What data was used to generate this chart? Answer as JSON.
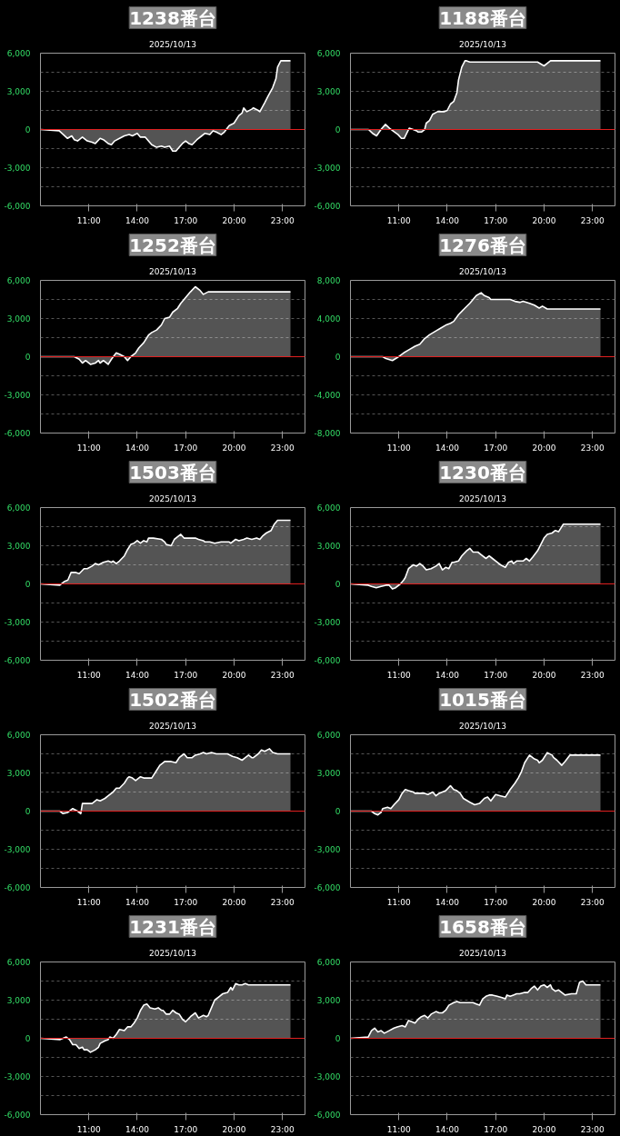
{
  "chart_data": [
    {
      "type": "area",
      "title": "1238番台",
      "subtitle": "2025/10/13",
      "xlim": [
        8,
        24.4
      ],
      "ylim": [
        -6000,
        6000
      ],
      "grid": "y",
      "xticks": [
        {
          "value": 11,
          "label": "11:00"
        },
        {
          "value": 14,
          "label": "14:00"
        },
        {
          "value": 17,
          "label": "17:00"
        },
        {
          "value": 20,
          "label": "20:00"
        },
        {
          "value": 23,
          "label": "23:00"
        }
      ],
      "yticks": [
        {
          "value": -6000,
          "label": "-6,000"
        },
        {
          "value": -4500,
          "label": null
        },
        {
          "value": -3000,
          "label": "-3,000"
        },
        {
          "value": -1500,
          "label": null
        },
        0,
        {
          "value": 1500,
          "label": null
        },
        {
          "value": 3000,
          "label": "3,000"
        },
        {
          "value": 4500,
          "label": null
        },
        {
          "value": 6000,
          "label": "6,000"
        }
      ],
      "ref_lines": [
        {
          "axis": "y",
          "value": 0,
          "color": "#e02020"
        }
      ],
      "x": [
        8.0,
        9.16,
        9.68,
        9.94,
        10.1,
        10.3,
        10.6,
        10.9,
        11.2,
        11.4,
        11.7,
        11.9,
        12.2,
        12.4,
        12.6,
        12.9,
        13.2,
        13.5,
        13.7,
        14.0,
        14.2,
        14.5,
        14.9,
        15.2,
        15.5,
        15.7,
        16.0,
        16.2,
        16.4,
        16.6,
        16.8,
        17.0,
        17.2,
        17.4,
        17.7,
        18.0,
        18.2,
        18.5,
        18.7,
        18.9,
        19.2,
        19.4,
        19.7,
        20.0,
        20.3,
        20.5,
        20.6,
        20.8,
        21.1,
        21.2,
        21.5,
        21.6,
        21.9,
        22.1,
        22.4,
        22.6,
        22.7,
        22.9,
        23.5
      ],
      "series": [
        {
          "color": "#ffffff",
          "values": [
            0,
            -100,
            -700,
            -500,
            -800,
            -900,
            -600,
            -900,
            -1000,
            -1100,
            -700,
            -800,
            -1100,
            -1200,
            -900,
            -700,
            -500,
            -400,
            -500,
            -300,
            -600,
            -600,
            -1200,
            -1400,
            -1300,
            -1400,
            -1300,
            -1700,
            -1700,
            -1400,
            -1100,
            -900,
            -1100,
            -1200,
            -800,
            -500,
            -300,
            -400,
            -100,
            -200,
            -400,
            -200,
            300,
            500,
            1100,
            1300,
            1700,
            1400,
            1600,
            1700,
            1500,
            1400,
            2100,
            2600,
            3300,
            4000,
            4900,
            5400,
            5400
          ]
        }
      ]
    },
    {
      "type": "area",
      "title": "1188番台",
      "subtitle": "2025/10/13",
      "xlim": [
        8,
        24.4
      ],
      "ylim": [
        -6000,
        6000
      ],
      "grid": "y",
      "xticks": [
        {
          "value": 11,
          "label": "11:00"
        },
        {
          "value": 14,
          "label": "14:00"
        },
        {
          "value": 17,
          "label": "17:00"
        },
        {
          "value": 20,
          "label": "20:00"
        },
        {
          "value": 23,
          "label": "23:00"
        }
      ],
      "yticks": [
        {
          "value": -6000,
          "label": "-6,000"
        },
        {
          "value": -4500,
          "label": null
        },
        {
          "value": -3000,
          "label": "-3,000"
        },
        {
          "value": -1500,
          "label": null
        },
        0,
        {
          "value": 1500,
          "label": null
        },
        {
          "value": 3000,
          "label": "3,000"
        },
        {
          "value": 4500,
          "label": null
        },
        {
          "value": 6000,
          "label": "6,000"
        }
      ],
      "ref_lines": [
        {
          "axis": "y",
          "value": 0,
          "color": "#e02020"
        }
      ],
      "x": [
        8.0,
        9.12,
        9.37,
        9.62,
        9.89,
        10.17,
        10.42,
        10.74,
        10.95,
        11.16,
        11.33,
        11.64,
        11.89,
        12.1,
        12.2,
        12.4,
        12.6,
        12.7,
        12.9,
        13.1,
        13.4,
        13.8,
        14.0,
        14.2,
        14.4,
        14.6,
        14.7,
        14.9,
        15.1,
        15.2,
        15.4,
        19.6,
        20.0,
        20.4,
        23.5
      ],
      "series": [
        {
          "color": "#ffffff",
          "values": [
            0,
            0,
            -300,
            -500,
            0,
            400,
            100,
            -200,
            -400,
            -700,
            -700,
            100,
            0,
            -100,
            -200,
            -200,
            0,
            500,
            700,
            1200,
            1400,
            1400,
            1500,
            2000,
            2200,
            2900,
            3900,
            4900,
            5400,
            5400,
            5300,
            5300,
            5000,
            5400,
            5400
          ]
        }
      ]
    },
    {
      "type": "area",
      "title": "1252番台",
      "subtitle": "2025/10/13",
      "xlim": [
        8,
        24.4
      ],
      "ylim": [
        -6000,
        6000
      ],
      "grid": "y",
      "xticks": [
        {
          "value": 11,
          "label": "11:00"
        },
        {
          "value": 14,
          "label": "14:00"
        },
        {
          "value": 17,
          "label": "17:00"
        },
        {
          "value": 20,
          "label": "20:00"
        },
        {
          "value": 23,
          "label": "23:00"
        }
      ],
      "yticks": [
        {
          "value": -6000,
          "label": "-6,000"
        },
        {
          "value": -4500,
          "label": null
        },
        {
          "value": -3000,
          "label": "-3,000"
        },
        {
          "value": -1500,
          "label": null
        },
        0,
        {
          "value": 1500,
          "label": null
        },
        {
          "value": 3000,
          "label": "3,000"
        },
        {
          "value": 4500,
          "label": null
        },
        {
          "value": 6000,
          "label": "6,000"
        }
      ],
      "ref_lines": [
        {
          "axis": "y",
          "value": 0,
          "color": "#e02020"
        }
      ],
      "x": [
        8.0,
        10.1,
        10.4,
        10.6,
        10.8,
        11.1,
        11.4,
        11.6,
        11.7,
        11.9,
        12.2,
        12.4,
        12.7,
        12.9,
        13.2,
        13.4,
        13.6,
        13.9,
        14.1,
        14.4,
        14.7,
        14.9,
        15.2,
        15.5,
        15.7,
        16.0,
        16.2,
        16.5,
        16.7,
        17.1,
        17.3,
        17.6,
        17.9,
        18.1,
        18.4,
        23.5
      ],
      "series": [
        {
          "color": "#ffffff",
          "values": [
            0,
            0,
            -200,
            -500,
            -300,
            -600,
            -500,
            -300,
            -500,
            -300,
            -600,
            -200,
            300,
            200,
            0,
            -300,
            0,
            300,
            700,
            1100,
            1700,
            1900,
            2100,
            2500,
            3000,
            3100,
            3500,
            3800,
            4200,
            4800,
            5100,
            5500,
            5200,
            4900,
            5100,
            5100
          ]
        }
      ]
    },
    {
      "type": "area",
      "title": "1276番台",
      "subtitle": "2025/10/13",
      "xlim": [
        8,
        24.4
      ],
      "ylim": [
        -8000,
        8000
      ],
      "grid": "y",
      "xticks": [
        {
          "value": 11,
          "label": "11:00"
        },
        {
          "value": 14,
          "label": "14:00"
        },
        {
          "value": 17,
          "label": "17:00"
        },
        {
          "value": 20,
          "label": "20:00"
        },
        {
          "value": 23,
          "label": "23:00"
        }
      ],
      "yticks": [
        {
          "value": -8000,
          "label": "-8,000"
        },
        {
          "value": -6000,
          "label": null
        },
        {
          "value": -4000,
          "label": "-4,000"
        },
        {
          "value": -2000,
          "label": null
        },
        0,
        {
          "value": 2000,
          "label": null
        },
        {
          "value": 4000,
          "label": "4,000"
        },
        {
          "value": 6000,
          "label": null
        },
        {
          "value": 8000,
          "label": "8,000"
        }
      ],
      "ref_lines": [
        {
          "axis": "y",
          "value": 0,
          "color": "#e02020"
        }
      ],
      "x": [
        8.0,
        10.0,
        10.2,
        10.6,
        10.9,
        11.3,
        11.6,
        12.0,
        12.3,
        12.6,
        12.9,
        13.3,
        13.6,
        13.9,
        14.2,
        14.4,
        14.7,
        15.1,
        15.4,
        15.6,
        15.8,
        16.1,
        16.3,
        16.6,
        16.7,
        17.9,
        18.2,
        18.5,
        18.7,
        19.1,
        19.4,
        19.7,
        19.9,
        20.2,
        23.5
      ],
      "series": [
        {
          "color": "#ffffff",
          "values": [
            0,
            0,
            -200,
            -400,
            -100,
            400,
            700,
            1100,
            1300,
            1900,
            2300,
            2700,
            3000,
            3300,
            3500,
            3700,
            4400,
            5100,
            5600,
            6000,
            6400,
            6700,
            6400,
            6200,
            6000,
            6000,
            5800,
            5700,
            5800,
            5600,
            5400,
            5100,
            5300,
            5000,
            5000
          ]
        }
      ]
    },
    {
      "type": "area",
      "title": "1503番台",
      "subtitle": "2025/10/13",
      "xlim": [
        8,
        24.4
      ],
      "ylim": [
        -6000,
        6000
      ],
      "grid": "y",
      "xticks": [
        {
          "value": 11,
          "label": "11:00"
        },
        {
          "value": 14,
          "label": "14:00"
        },
        {
          "value": 17,
          "label": "17:00"
        },
        {
          "value": 20,
          "label": "20:00"
        },
        {
          "value": 23,
          "label": "23:00"
        }
      ],
      "yticks": [
        {
          "value": -6000,
          "label": "-6,000"
        },
        {
          "value": -4500,
          "label": null
        },
        {
          "value": -3000,
          "label": "-3,000"
        },
        {
          "value": -1500,
          "label": null
        },
        0,
        {
          "value": 1500,
          "label": null
        },
        {
          "value": 3000,
          "label": "3,000"
        },
        {
          "value": 4500,
          "label": null
        },
        {
          "value": 6000,
          "label": "6,000"
        }
      ],
      "ref_lines": [
        {
          "axis": "y",
          "value": 0,
          "color": "#e02020"
        }
      ],
      "x": [
        8.0,
        9.2,
        9.5,
        9.7,
        9.9,
        10.2,
        10.4,
        10.7,
        10.9,
        11.2,
        11.4,
        11.6,
        11.9,
        12.2,
        12.4,
        12.5,
        12.7,
        12.9,
        13.2,
        13.4,
        13.6,
        13.8,
        14.0,
        14.2,
        14.4,
        14.6,
        14.7,
        15.0,
        15.5,
        15.7,
        15.8,
        16.1,
        16.3,
        16.5,
        16.7,
        16.9,
        17.3,
        17.6,
        17.8,
        18.1,
        18.2,
        18.5,
        18.8,
        19.2,
        19.7,
        19.8,
        20.1,
        20.3,
        20.6,
        20.8,
        21.1,
        21.4,
        21.6,
        21.8,
        22.0,
        22.3,
        22.5,
        22.7,
        23.0,
        23.5
      ],
      "series": [
        {
          "color": "#ffffff",
          "values": [
            0,
            -100,
            200,
            300,
            900,
            900,
            800,
            1200,
            1200,
            1400,
            1600,
            1500,
            1700,
            1800,
            1700,
            1800,
            1600,
            1800,
            2200,
            2700,
            3100,
            3200,
            3400,
            3200,
            3400,
            3300,
            3600,
            3600,
            3500,
            3300,
            3100,
            3000,
            3500,
            3700,
            3900,
            3600,
            3600,
            3600,
            3500,
            3400,
            3300,
            3300,
            3200,
            3300,
            3300,
            3200,
            3500,
            3400,
            3500,
            3600,
            3500,
            3600,
            3500,
            3800,
            4000,
            4200,
            4700,
            5000,
            5000,
            5000
          ]
        }
      ]
    },
    {
      "type": "area",
      "title": "1230番台",
      "subtitle": "2025/10/13",
      "xlim": [
        8,
        24.4
      ],
      "ylim": [
        -6000,
        6000
      ],
      "grid": "y",
      "xticks": [
        {
          "value": 11,
          "label": "11:00"
        },
        {
          "value": 14,
          "label": "14:00"
        },
        {
          "value": 17,
          "label": "17:00"
        },
        {
          "value": 20,
          "label": "20:00"
        },
        {
          "value": 23,
          "label": "23:00"
        }
      ],
      "yticks": [
        {
          "value": -6000,
          "label": "-6,000"
        },
        {
          "value": -4500,
          "label": null
        },
        {
          "value": -3000,
          "label": "-3,000"
        },
        {
          "value": -1500,
          "label": null
        },
        0,
        {
          "value": 1500,
          "label": null
        },
        {
          "value": 3000,
          "label": "3,000"
        },
        {
          "value": 4500,
          "label": null
        },
        {
          "value": 6000,
          "label": "6,000"
        }
      ],
      "ref_lines": [
        {
          "axis": "y",
          "value": 0,
          "color": "#e02020"
        }
      ],
      "x": [
        8.0,
        9.1,
        9.3,
        9.6,
        9.9,
        10.2,
        10.4,
        10.6,
        10.8,
        11.1,
        11.3,
        11.4,
        11.6,
        11.9,
        12.1,
        12.3,
        12.5,
        12.7,
        13.0,
        13.3,
        13.5,
        13.7,
        13.9,
        14.1,
        14.3,
        14.4,
        14.7,
        14.9,
        15.2,
        15.4,
        15.6,
        15.9,
        16.1,
        16.4,
        16.6,
        16.8,
        17.1,
        17.3,
        17.6,
        17.8,
        18.0,
        18.1,
        18.3,
        18.5,
        18.7,
        18.9,
        19.1,
        19.3,
        19.6,
        19.8,
        20.0,
        20.2,
        20.5,
        20.7,
        20.9,
        21.2,
        23.5
      ],
      "series": [
        {
          "color": "#ffffff",
          "values": [
            0,
            -100,
            -200,
            -300,
            -200,
            -100,
            -100,
            -400,
            -300,
            0,
            300,
            500,
            1200,
            1500,
            1400,
            1600,
            1400,
            1100,
            1200,
            1400,
            1600,
            1100,
            1300,
            1200,
            1700,
            1700,
            1800,
            2200,
            2600,
            2800,
            2500,
            2500,
            2300,
            2000,
            2200,
            2000,
            1700,
            1500,
            1300,
            1700,
            1800,
            1600,
            1800,
            1800,
            1800,
            2000,
            1800,
            2100,
            2600,
            3100,
            3600,
            3900,
            4000,
            4200,
            4100,
            4700,
            4700
          ]
        }
      ]
    },
    {
      "type": "area",
      "title": "1502番台",
      "subtitle": "2025/10/13",
      "xlim": [
        8,
        24.4
      ],
      "ylim": [
        -6000,
        6000
      ],
      "grid": "y",
      "xticks": [
        {
          "value": 11,
          "label": "11:00"
        },
        {
          "value": 14,
          "label": "14:00"
        },
        {
          "value": 17,
          "label": "17:00"
        },
        {
          "value": 20,
          "label": "20:00"
        },
        {
          "value": 23,
          "label": "23:00"
        }
      ],
      "yticks": [
        {
          "value": -6000,
          "label": "-6,000"
        },
        {
          "value": -4500,
          "label": null
        },
        {
          "value": -3000,
          "label": "-3,000"
        },
        {
          "value": -1500,
          "label": null
        },
        0,
        {
          "value": 1500,
          "label": null
        },
        {
          "value": 3000,
          "label": "3,000"
        },
        {
          "value": 4500,
          "label": null
        },
        {
          "value": 6000,
          "label": "6,000"
        }
      ],
      "ref_lines": [
        {
          "axis": "y",
          "value": 0,
          "color": "#e02020"
        }
      ],
      "x": [
        8.0,
        9.2,
        9.4,
        9.7,
        10.0,
        10.3,
        10.5,
        10.6,
        10.9,
        11.2,
        11.5,
        11.7,
        12.0,
        12.2,
        12.5,
        12.7,
        12.9,
        13.2,
        13.4,
        13.5,
        13.7,
        13.9,
        14.2,
        14.4,
        14.6,
        14.9,
        15.2,
        15.4,
        15.6,
        15.7,
        16.1,
        16.4,
        16.6,
        16.9,
        17.1,
        17.4,
        17.6,
        17.9,
        18.1,
        18.3,
        18.6,
        18.9,
        19.6,
        19.9,
        20.2,
        20.5,
        20.7,
        20.9,
        21.1,
        21.2,
        21.5,
        21.7,
        21.9,
        22.2,
        22.4,
        22.7,
        23.5
      ],
      "series": [
        {
          "color": "#ffffff",
          "values": [
            0,
            0,
            -200,
            -100,
            200,
            0,
            -200,
            600,
            600,
            600,
            900,
            800,
            1000,
            1200,
            1500,
            1800,
            1800,
            2200,
            2600,
            2700,
            2600,
            2400,
            2700,
            2600,
            2600,
            2600,
            3200,
            3600,
            3800,
            3900,
            3900,
            3800,
            4200,
            4500,
            4200,
            4200,
            4400,
            4500,
            4600,
            4500,
            4600,
            4500,
            4500,
            4300,
            4200,
            4000,
            4200,
            4400,
            4200,
            4200,
            4500,
            4800,
            4700,
            4900,
            4600,
            4500,
            4500
          ]
        }
      ]
    },
    {
      "type": "area",
      "title": "1015番台",
      "subtitle": "2025/10/13",
      "xlim": [
        8,
        24.4
      ],
      "ylim": [
        -6000,
        6000
      ],
      "grid": "y",
      "xticks": [
        {
          "value": 11,
          "label": "11:00"
        },
        {
          "value": 14,
          "label": "14:00"
        },
        {
          "value": 17,
          "label": "17:00"
        },
        {
          "value": 20,
          "label": "20:00"
        },
        {
          "value": 23,
          "label": "23:00"
        }
      ],
      "yticks": [
        {
          "value": -6000,
          "label": "-6,000"
        },
        {
          "value": -4500,
          "label": null
        },
        {
          "value": -3000,
          "label": "-3,000"
        },
        {
          "value": -1500,
          "label": null
        },
        0,
        {
          "value": 1500,
          "label": null
        },
        {
          "value": 3000,
          "label": "3,000"
        },
        {
          "value": 4500,
          "label": null
        },
        {
          "value": 6000,
          "label": "6,000"
        }
      ],
      "ref_lines": [
        {
          "axis": "y",
          "value": 0,
          "color": "#e02020"
        }
      ],
      "x": [
        8.0,
        9.3,
        9.5,
        9.7,
        9.9,
        10.0,
        10.3,
        10.5,
        10.7,
        11.0,
        11.2,
        11.4,
        11.6,
        11.9,
        12.0,
        12.6,
        12.8,
        13.1,
        13.3,
        13.5,
        13.7,
        13.9,
        14.2,
        14.4,
        14.6,
        14.8,
        15.0,
        15.4,
        15.7,
        16.0,
        16.3,
        16.5,
        16.7,
        17.0,
        17.3,
        17.6,
        17.9,
        18.2,
        18.4,
        18.6,
        18.8,
        19.1,
        19.4,
        19.6,
        19.7,
        19.9,
        20.2,
        20.5,
        20.6,
        20.8,
        21.1,
        21.3,
        21.6,
        23.5
      ],
      "series": [
        {
          "color": "#ffffff",
          "values": [
            0,
            0,
            -200,
            -300,
            -100,
            200,
            300,
            200,
            500,
            900,
            1400,
            1700,
            1600,
            1500,
            1400,
            1400,
            1300,
            1500,
            1200,
            1400,
            1500,
            1600,
            2000,
            1700,
            1600,
            1400,
            1000,
            700,
            500,
            600,
            1000,
            1100,
            800,
            1300,
            1200,
            1100,
            1700,
            2200,
            2600,
            3100,
            3800,
            4400,
            4100,
            4000,
            3800,
            4000,
            4600,
            4400,
            4200,
            4000,
            3600,
            3900,
            4400,
            4400
          ]
        }
      ]
    },
    {
      "type": "area",
      "title": "1231番台",
      "subtitle": "2025/10/13",
      "xlim": [
        8,
        24.4
      ],
      "ylim": [
        -6000,
        6000
      ],
      "grid": "y",
      "xticks": [
        {
          "value": 11,
          "label": "11:00"
        },
        {
          "value": 14,
          "label": "14:00"
        },
        {
          "value": 17,
          "label": "17:00"
        },
        {
          "value": 20,
          "label": "20:00"
        },
        {
          "value": 23,
          "label": "23:00"
        }
      ],
      "yticks": [
        {
          "value": -6000,
          "label": "-6,000"
        },
        {
          "value": -4500,
          "label": null
        },
        {
          "value": -3000,
          "label": "-3,000"
        },
        {
          "value": -1500,
          "label": null
        },
        0,
        {
          "value": 1500,
          "label": null
        },
        {
          "value": 3000,
          "label": "3,000"
        },
        {
          "value": 4500,
          "label": null
        },
        {
          "value": 6000,
          "label": "6,000"
        }
      ],
      "ref_lines": [
        {
          "axis": "y",
          "value": 0,
          "color": "#e02020"
        }
      ],
      "x": [
        8.0,
        9.2,
        9.6,
        9.8,
        10.0,
        10.2,
        10.4,
        10.6,
        10.7,
        10.9,
        11.1,
        11.4,
        11.6,
        11.7,
        12.0,
        12.2,
        12.3,
        12.5,
        12.7,
        12.9,
        13.2,
        13.4,
        13.6,
        13.8,
        14.0,
        14.2,
        14.4,
        14.6,
        14.8,
        15.1,
        15.3,
        15.5,
        15.6,
        15.8,
        16.0,
        16.2,
        16.4,
        16.6,
        16.8,
        17.0,
        17.3,
        17.6,
        17.8,
        18.1,
        18.3,
        18.4,
        18.6,
        18.8,
        19.1,
        19.3,
        19.6,
        19.8,
        19.9,
        20.1,
        20.3,
        20.5,
        20.7,
        20.9,
        23.5
      ],
      "series": [
        {
          "color": "#ffffff",
          "values": [
            0,
            -100,
            100,
            -100,
            -500,
            -500,
            -800,
            -700,
            -900,
            -900,
            -1100,
            -900,
            -700,
            -400,
            -200,
            -100,
            100,
            0,
            300,
            700,
            600,
            900,
            900,
            1200,
            1600,
            2200,
            2600,
            2700,
            2400,
            2300,
            2400,
            2200,
            2200,
            1900,
            1900,
            2200,
            2000,
            1900,
            1500,
            1300,
            1700,
            2000,
            1600,
            1800,
            1700,
            1800,
            2400,
            3000,
            3300,
            3500,
            3600,
            4000,
            3800,
            4300,
            4200,
            4200,
            4300,
            4200,
            4200
          ]
        }
      ]
    },
    {
      "type": "area",
      "title": "1658番台",
      "subtitle": "2025/10/13",
      "xlim": [
        8,
        24.4
      ],
      "ylim": [
        -6000,
        6000
      ],
      "grid": "y",
      "xticks": [
        {
          "value": 11,
          "label": "11:00"
        },
        {
          "value": 14,
          "label": "14:00"
        },
        {
          "value": 17,
          "label": "17:00"
        },
        {
          "value": 20,
          "label": "20:00"
        },
        {
          "value": 23,
          "label": "23:00"
        }
      ],
      "yticks": [
        {
          "value": -6000,
          "label": "-6,000"
        },
        {
          "value": -4500,
          "label": null
        },
        {
          "value": -3000,
          "label": "-3,000"
        },
        {
          "value": -1500,
          "label": null
        },
        0,
        {
          "value": 1500,
          "label": null
        },
        {
          "value": 3000,
          "label": "3,000"
        },
        {
          "value": 4500,
          "label": null
        },
        {
          "value": 6000,
          "label": "6,000"
        }
      ],
      "ref_lines": [
        {
          "axis": "y",
          "value": 0,
          "color": "#e02020"
        }
      ],
      "x": [
        8.0,
        9.1,
        9.3,
        9.5,
        9.7,
        9.9,
        10.1,
        10.4,
        10.7,
        10.9,
        11.2,
        11.4,
        11.6,
        11.8,
        12.0,
        12.2,
        12.4,
        12.6,
        12.8,
        13.0,
        13.3,
        13.5,
        13.7,
        13.9,
        14.1,
        14.4,
        14.6,
        14.8,
        15.2,
        15.6,
        15.8,
        16.0,
        16.2,
        16.4,
        16.6,
        16.8,
        17.1,
        17.4,
        17.6,
        17.7,
        17.9,
        18.1,
        18.3,
        18.5,
        18.8,
        19.0,
        19.2,
        19.4,
        19.6,
        19.8,
        20.0,
        20.2,
        20.4,
        20.5,
        20.7,
        20.9,
        21.1,
        21.3,
        21.7,
        22.0,
        22.2,
        22.4,
        22.6,
        23.5
      ],
      "series": [
        {
          "color": "#ffffff",
          "values": [
            0,
            100,
            600,
            800,
            500,
            600,
            400,
            600,
            800,
            900,
            1000,
            900,
            1400,
            1300,
            1200,
            1500,
            1700,
            1800,
            1600,
            1900,
            2100,
            2000,
            2000,
            2200,
            2600,
            2800,
            2900,
            2800,
            2800,
            2800,
            2700,
            2600,
            3100,
            3300,
            3400,
            3400,
            3300,
            3200,
            3100,
            3400,
            3300,
            3400,
            3500,
            3500,
            3600,
            3600,
            3900,
            4100,
            3800,
            4100,
            4200,
            4000,
            4200,
            3900,
            3700,
            3800,
            3600,
            3400,
            3500,
            3500,
            4400,
            4500,
            4200,
            4200
          ]
        }
      ]
    }
  ]
}
